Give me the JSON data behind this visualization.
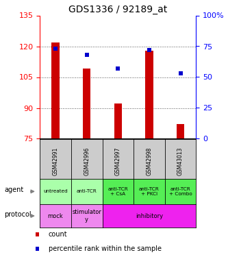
{
  "title": "GDS1336 / 92189_at",
  "samples": [
    "GSM42991",
    "GSM42996",
    "GSM42997",
    "GSM42998",
    "GSM43013"
  ],
  "counts": [
    122,
    109,
    92,
    118,
    82
  ],
  "percentile_ranks": [
    73,
    68,
    57,
    72,
    53
  ],
  "ylim_left": [
    75,
    135
  ],
  "ylim_right": [
    0,
    100
  ],
  "yticks_left": [
    75,
    90,
    105,
    120,
    135
  ],
  "yticks_right": [
    0,
    25,
    50,
    75,
    100
  ],
  "bar_color": "#cc0000",
  "dot_color": "#0000cc",
  "bar_bottom": 75,
  "agent_labels": [
    "untreated",
    "anti-TCR",
    "anti-TCR\n+ CsA",
    "anti-TCR\n+ PKCi",
    "anti-TCR\n+ Combo"
  ],
  "agent_bg_light": "#aaffaa",
  "agent_bg_dark": "#55ee55",
  "protocol_spans": [
    {
      "start": 0,
      "end": 1,
      "label": "mock",
      "color": "#ee88ee"
    },
    {
      "start": 1,
      "end": 2,
      "label": "stimulator\ny",
      "color": "#ee88ee"
    },
    {
      "start": 2,
      "end": 5,
      "label": "inhibitory",
      "color": "#ee22ee"
    }
  ],
  "sample_bg": "#cccccc",
  "legend_count_color": "#cc0000",
  "legend_pct_color": "#0000cc",
  "grid_color": "#555555",
  "title_fontsize": 10
}
